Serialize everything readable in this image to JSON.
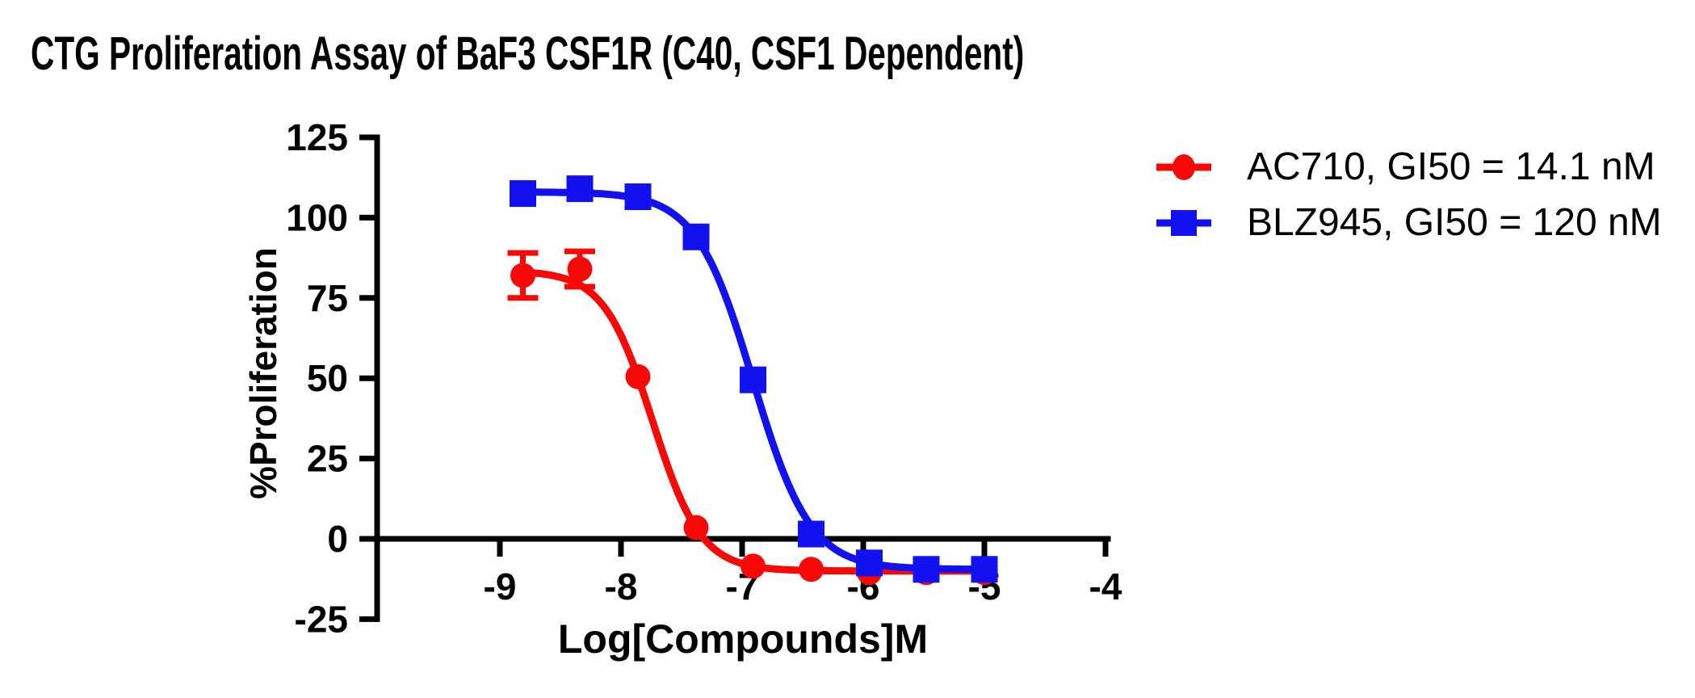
{
  "title": "CTG Proliferation Assay of BaF3 CSF1R (C40, CSF1 Dependent)",
  "chart_data": {
    "type": "line",
    "title": "CTG Proliferation Assay of BaF3 CSF1R (C40, CSF1 Dependent)",
    "xlabel": "Log[Compounds]M",
    "ylabel": "%Proliferation",
    "xlim": [
      -10,
      -3.95
    ],
    "ylim": [
      -25,
      125
    ],
    "x_ticks": [
      -9,
      -8,
      -7,
      -6,
      -5,
      -4
    ],
    "y_ticks": [
      125,
      100,
      75,
      50,
      25,
      0,
      -25
    ],
    "grid": false,
    "legend_position": "right-of-plot",
    "axis_color": "#000000",
    "background_color": "#FFFFFF",
    "x": [
      -8.81,
      -8.34,
      -7.86,
      -7.38,
      -6.91,
      -6.43,
      -5.95,
      -5.48,
      -5.0
    ],
    "series": [
      {
        "name": "AC710, GI50 = 14.1 nM",
        "compound": "AC710",
        "gi50_label": "14.1 nM",
        "marker": "circle",
        "color": "#F90808",
        "values": [
          82,
          84,
          50.5,
          3.5,
          -8.5,
          -9.5,
          -10.5,
          -10.5,
          -10.5
        ],
        "errors": [
          7,
          5.5,
          0,
          0,
          0,
          0,
          0,
          0,
          0
        ],
        "fit": {
          "top": 83.5,
          "bottom": -10,
          "logec50": -7.74,
          "hill": 2.16
        }
      },
      {
        "name": "BLZ945, GI50 = 120 nM",
        "compound": "BLZ945",
        "gi50_label": "120 nM",
        "marker": "square",
        "color": "#1212F0",
        "values": [
          107.5,
          109,
          106.5,
          94,
          49.5,
          1.5,
          -7.5,
          -9.5,
          -9.5
        ],
        "errors": [
          0,
          0,
          0,
          0,
          0,
          0,
          0,
          0,
          0
        ],
        "fit": {
          "top": 108,
          "bottom": -9.5,
          "logec50": -6.91,
          "hill": 1.84
        }
      }
    ]
  }
}
